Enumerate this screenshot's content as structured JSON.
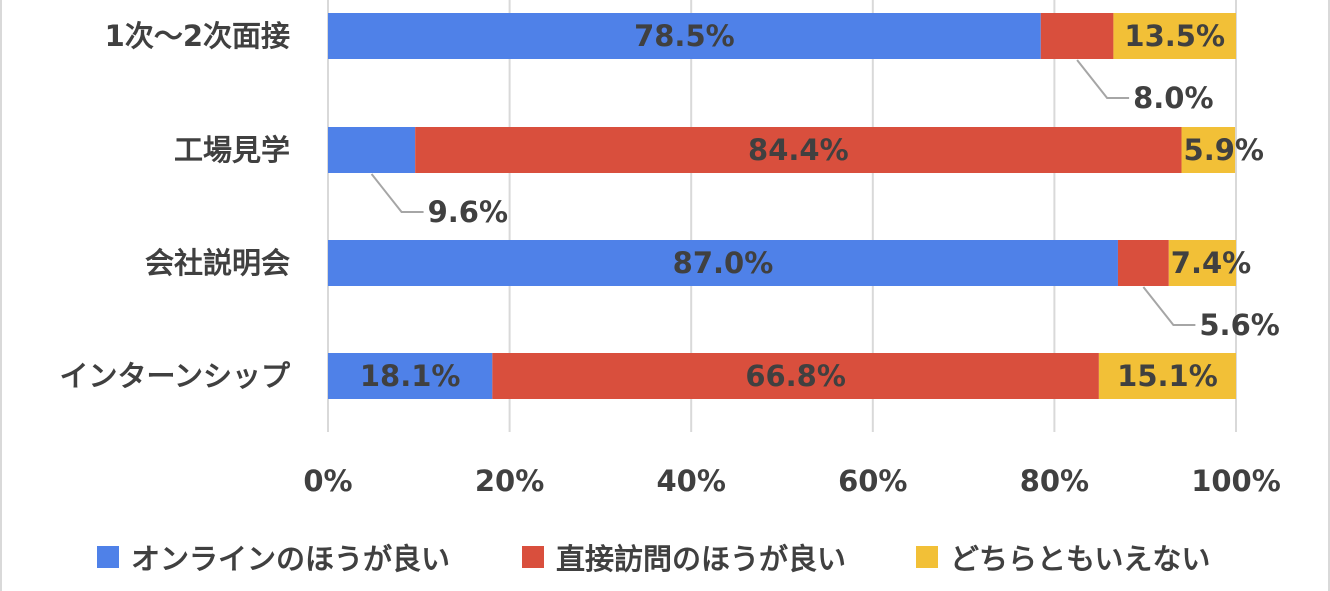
{
  "chart_data": {
    "type": "bar",
    "orientation": "horizontal",
    "stacked": "percent",
    "categories": [
      "1次～2次面接",
      "工場見学",
      "会社説明会",
      "インターンシップ"
    ],
    "series": [
      {
        "name": "オンラインのほうが良い",
        "color": "#4f81e8",
        "values": [
          78.5,
          9.6,
          87.0,
          18.1
        ],
        "labels": [
          "78.5%",
          "9.6%",
          "87.0%",
          "18.1%"
        ]
      },
      {
        "name": "直接訪問のほうが良い",
        "color": "#d94f3d",
        "values": [
          8.0,
          84.4,
          5.6,
          66.8
        ],
        "labels": [
          "8.0%",
          "84.4%",
          "5.6%",
          "66.8%"
        ]
      },
      {
        "name": "どちらともいえない",
        "color": "#f2c037",
        "values": [
          13.5,
          5.9,
          7.4,
          15.1
        ],
        "labels": [
          "13.5%",
          "5.9%",
          "7.4%",
          "15.1%"
        ]
      }
    ],
    "xlim": [
      0,
      100
    ],
    "xticks": [
      "0%",
      "20%",
      "40%",
      "60%",
      "80%",
      "100%"
    ],
    "grid": true,
    "legend_position": "bottom",
    "title": "",
    "xlabel": "",
    "ylabel": ""
  }
}
